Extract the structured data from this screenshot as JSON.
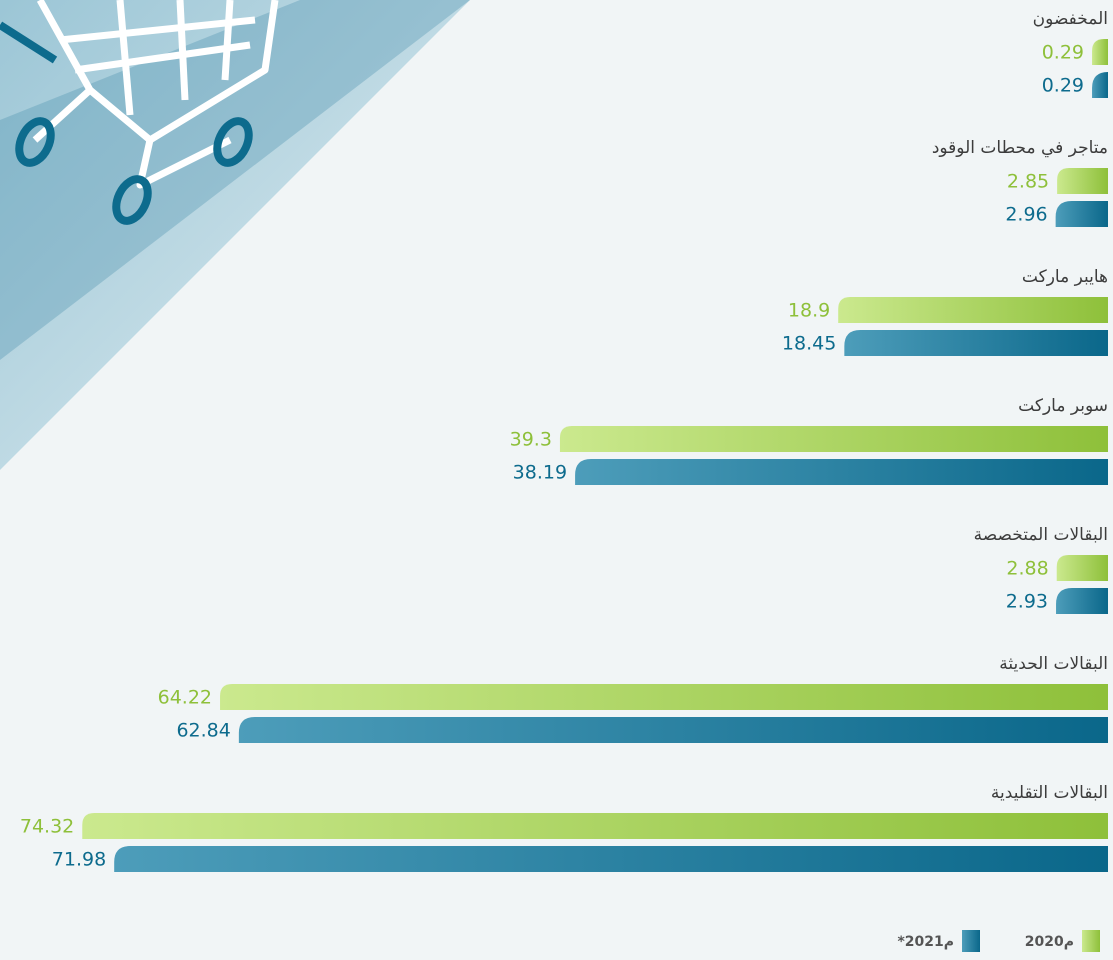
{
  "chart_data": {
    "type": "hbar",
    "categories": [
      "المخفضون",
      "متاجر في محطات الوقود",
      "هايبر ماركت",
      "سوبر ماركت",
      "البقالات المتخصصة",
      "البقالات الحديثة",
      "البقالات التقليدية"
    ],
    "series": [
      {
        "name": "2020م",
        "color": "#8ec03a",
        "values": [
          0.29,
          2.85,
          18.9,
          39.3,
          2.88,
          64.22,
          74.32
        ]
      },
      {
        "name": "*2021م",
        "color": "#0d6b8d",
        "values": [
          0.29,
          2.96,
          18.45,
          38.19,
          2.93,
          62.84,
          71.98
        ]
      }
    ]
  }
}
